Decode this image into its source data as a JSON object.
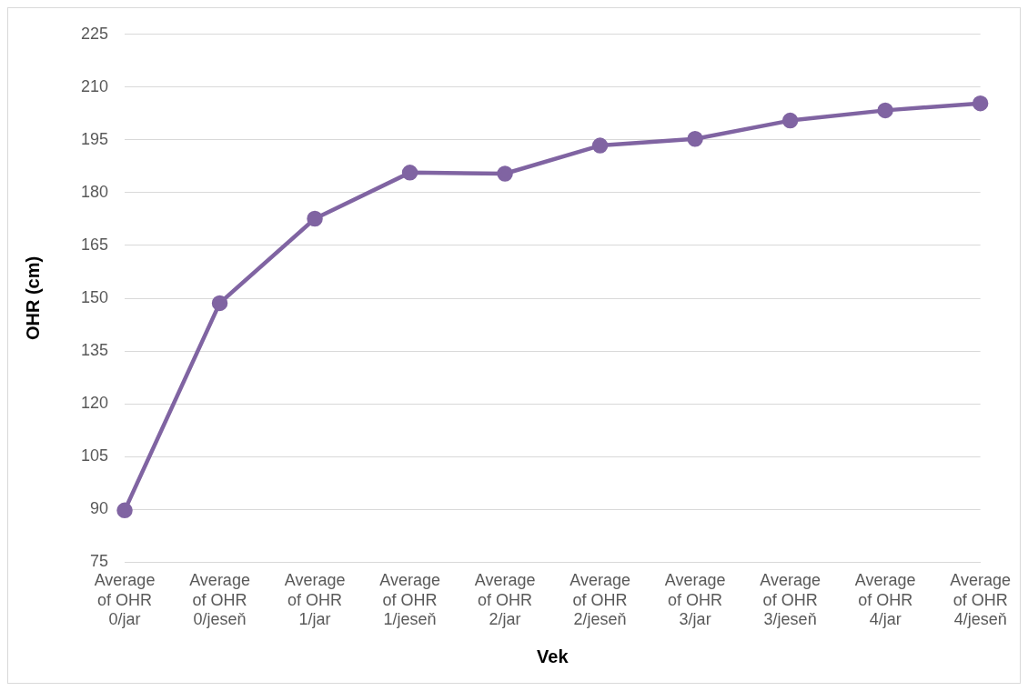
{
  "chart_data": {
    "type": "line",
    "xlabel": "Vek",
    "ylabel": "OHR (cm)",
    "categories": [
      "Average of OHR 0/jar",
      "Average of OHR 0/jeseň",
      "Average of OHR 1/jar",
      "Average of OHR 1/jeseň",
      "Average of OHR 2/jar",
      "Average of OHR 2/jeseň",
      "Average of OHR 3/jar",
      "Average of OHR 3/jeseň",
      "Average of OHR 4/jar",
      "Average of OHR 4/jeseň"
    ],
    "series": [
      {
        "color": "#8064a2",
        "values": [
          89.7,
          148.6,
          172.6,
          185.7,
          185.4,
          193.4,
          195.3,
          200.5,
          203.4,
          205.4
        ]
      }
    ],
    "ylim": [
      75,
      225
    ],
    "yticks": [
      75,
      90,
      105,
      120,
      135,
      150,
      165,
      180,
      195,
      210,
      225
    ],
    "grid": "y",
    "legend": false,
    "marker": "circle",
    "line_style": "solid"
  }
}
